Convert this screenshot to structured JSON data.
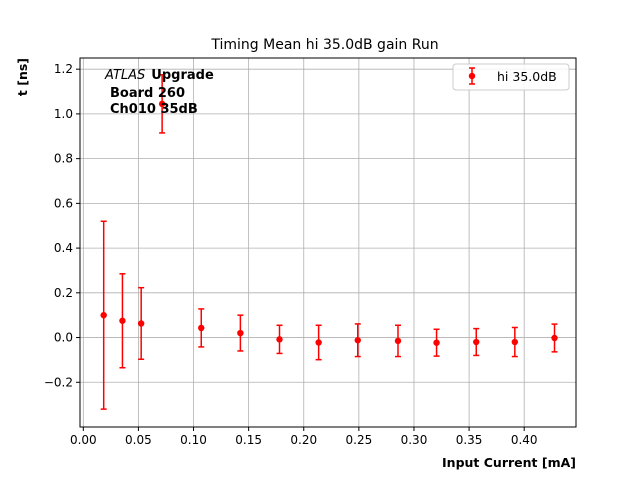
{
  "chart_data": {
    "type": "scatter",
    "title": "Timing Mean hi 35.0dB gain Run",
    "xlabel": "Input Current [mA]",
    "ylabel": "t [ns]",
    "xlim": [
      -0.003,
      0.447
    ],
    "ylim": [
      -0.4,
      1.25
    ],
    "x_ticks": [
      0.0,
      0.05,
      0.1,
      0.15,
      0.2,
      0.25,
      0.3,
      0.35,
      0.4
    ],
    "x_tick_labels": [
      "0.00",
      "0.05",
      "0.10",
      "0.15",
      "0.20",
      "0.25",
      "0.30",
      "0.35",
      "0.40"
    ],
    "y_ticks": [
      -0.2,
      0.0,
      0.2,
      0.4,
      0.6,
      0.8,
      1.0,
      1.2
    ],
    "y_tick_labels": [
      "−0.2",
      "0.0",
      "0.2",
      "0.4",
      "0.6",
      "0.8",
      "1.0",
      "1.2"
    ],
    "grid": true,
    "legend_position": "top-right",
    "annotation": {
      "italic": "ATLAS",
      "bold": "Upgrade",
      "line2": "Board 260",
      "line3": "Ch010 35dB"
    },
    "series": [
      {
        "name": "hi 35.0dB",
        "color": "#ff0000",
        "x": [
          0.0185,
          0.0355,
          0.0525,
          0.0715,
          0.107,
          0.1425,
          0.178,
          0.2135,
          0.249,
          0.2855,
          0.3205,
          0.3565,
          0.3915,
          0.4275
        ],
        "y": [
          0.1,
          0.075,
          0.063,
          1.045,
          0.043,
          0.02,
          -0.008,
          -0.022,
          -0.012,
          -0.015,
          -0.023,
          -0.02,
          -0.02,
          -0.002
        ],
        "yerr": [
          0.42,
          0.21,
          0.16,
          0.13,
          0.085,
          0.08,
          0.063,
          0.077,
          0.073,
          0.07,
          0.06,
          0.06,
          0.065,
          0.062
        ]
      }
    ]
  }
}
